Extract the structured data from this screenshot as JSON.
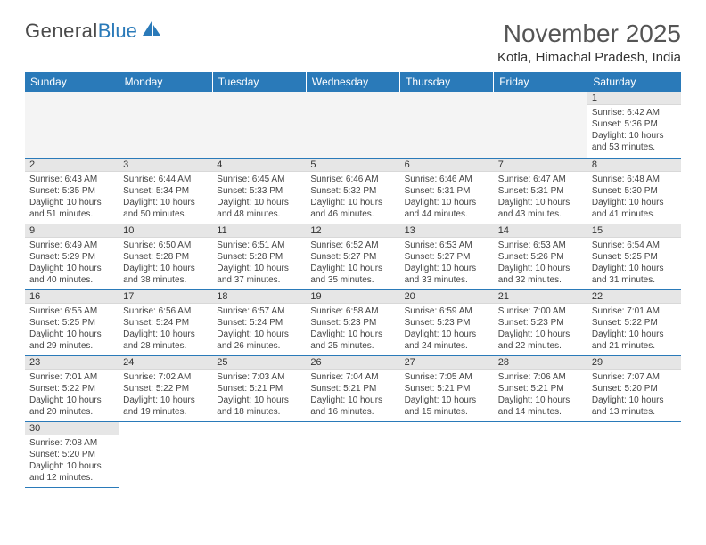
{
  "logo": {
    "general": "General",
    "blue": "Blue"
  },
  "title": "November 2025",
  "location": "Kotla, Himachal Pradesh, India",
  "colors": {
    "header_bg": "#2a7ab9",
    "header_text": "#ffffff",
    "daynum_bg": "#e6e6e6",
    "row_border": "#2a7ab9",
    "empty_bg": "#f4f4f4"
  },
  "fonts": {
    "title_size": 28,
    "location_size": 15,
    "dayheader_size": 12,
    "cell_size": 10
  },
  "daynames": [
    "Sunday",
    "Monday",
    "Tuesday",
    "Wednesday",
    "Thursday",
    "Friday",
    "Saturday"
  ],
  "weeks": [
    [
      null,
      null,
      null,
      null,
      null,
      null,
      {
        "n": "1",
        "sr": "6:42 AM",
        "ss": "5:36 PM",
        "dl": "10 hours and 53 minutes."
      }
    ],
    [
      {
        "n": "2",
        "sr": "6:43 AM",
        "ss": "5:35 PM",
        "dl": "10 hours and 51 minutes."
      },
      {
        "n": "3",
        "sr": "6:44 AM",
        "ss": "5:34 PM",
        "dl": "10 hours and 50 minutes."
      },
      {
        "n": "4",
        "sr": "6:45 AM",
        "ss": "5:33 PM",
        "dl": "10 hours and 48 minutes."
      },
      {
        "n": "5",
        "sr": "6:46 AM",
        "ss": "5:32 PM",
        "dl": "10 hours and 46 minutes."
      },
      {
        "n": "6",
        "sr": "6:46 AM",
        "ss": "5:31 PM",
        "dl": "10 hours and 44 minutes."
      },
      {
        "n": "7",
        "sr": "6:47 AM",
        "ss": "5:31 PM",
        "dl": "10 hours and 43 minutes."
      },
      {
        "n": "8",
        "sr": "6:48 AM",
        "ss": "5:30 PM",
        "dl": "10 hours and 41 minutes."
      }
    ],
    [
      {
        "n": "9",
        "sr": "6:49 AM",
        "ss": "5:29 PM",
        "dl": "10 hours and 40 minutes."
      },
      {
        "n": "10",
        "sr": "6:50 AM",
        "ss": "5:28 PM",
        "dl": "10 hours and 38 minutes."
      },
      {
        "n": "11",
        "sr": "6:51 AM",
        "ss": "5:28 PM",
        "dl": "10 hours and 37 minutes."
      },
      {
        "n": "12",
        "sr": "6:52 AM",
        "ss": "5:27 PM",
        "dl": "10 hours and 35 minutes."
      },
      {
        "n": "13",
        "sr": "6:53 AM",
        "ss": "5:27 PM",
        "dl": "10 hours and 33 minutes."
      },
      {
        "n": "14",
        "sr": "6:53 AM",
        "ss": "5:26 PM",
        "dl": "10 hours and 32 minutes."
      },
      {
        "n": "15",
        "sr": "6:54 AM",
        "ss": "5:25 PM",
        "dl": "10 hours and 31 minutes."
      }
    ],
    [
      {
        "n": "16",
        "sr": "6:55 AM",
        "ss": "5:25 PM",
        "dl": "10 hours and 29 minutes."
      },
      {
        "n": "17",
        "sr": "6:56 AM",
        "ss": "5:24 PM",
        "dl": "10 hours and 28 minutes."
      },
      {
        "n": "18",
        "sr": "6:57 AM",
        "ss": "5:24 PM",
        "dl": "10 hours and 26 minutes."
      },
      {
        "n": "19",
        "sr": "6:58 AM",
        "ss": "5:23 PM",
        "dl": "10 hours and 25 minutes."
      },
      {
        "n": "20",
        "sr": "6:59 AM",
        "ss": "5:23 PM",
        "dl": "10 hours and 24 minutes."
      },
      {
        "n": "21",
        "sr": "7:00 AM",
        "ss": "5:23 PM",
        "dl": "10 hours and 22 minutes."
      },
      {
        "n": "22",
        "sr": "7:01 AM",
        "ss": "5:22 PM",
        "dl": "10 hours and 21 minutes."
      }
    ],
    [
      {
        "n": "23",
        "sr": "7:01 AM",
        "ss": "5:22 PM",
        "dl": "10 hours and 20 minutes."
      },
      {
        "n": "24",
        "sr": "7:02 AM",
        "ss": "5:22 PM",
        "dl": "10 hours and 19 minutes."
      },
      {
        "n": "25",
        "sr": "7:03 AM",
        "ss": "5:21 PM",
        "dl": "10 hours and 18 minutes."
      },
      {
        "n": "26",
        "sr": "7:04 AM",
        "ss": "5:21 PM",
        "dl": "10 hours and 16 minutes."
      },
      {
        "n": "27",
        "sr": "7:05 AM",
        "ss": "5:21 PM",
        "dl": "10 hours and 15 minutes."
      },
      {
        "n": "28",
        "sr": "7:06 AM",
        "ss": "5:21 PM",
        "dl": "10 hours and 14 minutes."
      },
      {
        "n": "29",
        "sr": "7:07 AM",
        "ss": "5:20 PM",
        "dl": "10 hours and 13 minutes."
      }
    ],
    [
      {
        "n": "30",
        "sr": "7:08 AM",
        "ss": "5:20 PM",
        "dl": "10 hours and 12 minutes."
      },
      null,
      null,
      null,
      null,
      null,
      null
    ]
  ],
  "labels": {
    "sunrise": "Sunrise: ",
    "sunset": "Sunset: ",
    "daylight": "Daylight: "
  }
}
